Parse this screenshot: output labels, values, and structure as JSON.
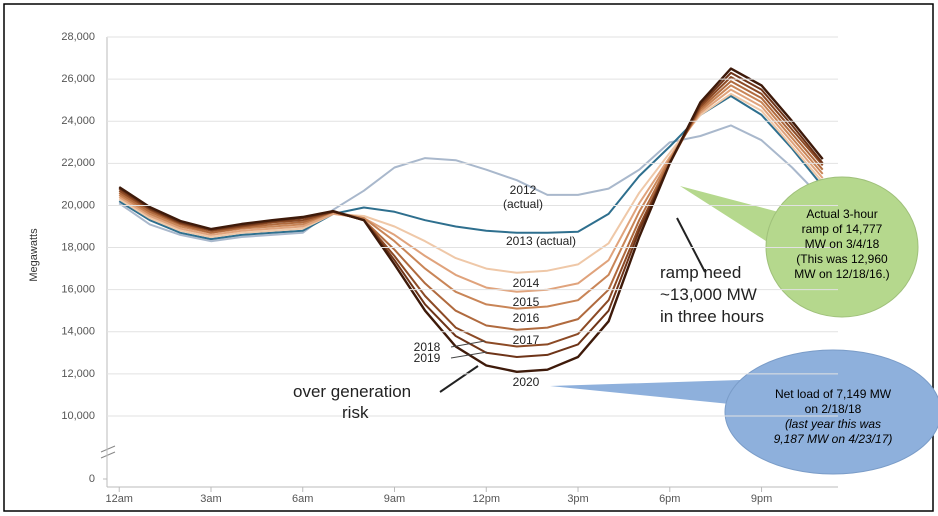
{
  "chart_data": {
    "type": "line",
    "y_label": "Megawatts",
    "x": [
      0,
      1,
      2,
      3,
      4,
      5,
      6,
      7,
      8,
      9,
      10,
      11,
      12,
      13,
      14,
      15,
      16,
      17,
      18,
      19,
      20,
      21,
      22,
      23
    ],
    "xlim": [
      -0.4,
      23.5
    ],
    "xticks": [
      {
        "value": 0,
        "label": "12am"
      },
      {
        "value": 3,
        "label": "3am"
      },
      {
        "value": 6,
        "label": "6am"
      },
      {
        "value": 9,
        "label": "9am"
      },
      {
        "value": 12,
        "label": "12pm"
      },
      {
        "value": 15,
        "label": "3pm"
      },
      {
        "value": 18,
        "label": "6pm"
      },
      {
        "value": 21,
        "label": "9pm"
      }
    ],
    "ylim": [
      0,
      28000
    ],
    "yticks": [
      0,
      {
        "value": 10000,
        "label": "10,000"
      },
      {
        "value": 12000,
        "label": "12,000"
      },
      {
        "value": 14000,
        "label": "14,000"
      },
      {
        "value": 16000,
        "label": "16,000"
      },
      {
        "value": 18000,
        "label": "18,000"
      },
      {
        "value": 20000,
        "label": "20,000"
      },
      {
        "value": 22000,
        "label": "22,000"
      },
      {
        "value": 24000,
        "label": "24,000"
      },
      {
        "value": 26000,
        "label": "26,000"
      },
      {
        "value": 28000,
        "label": "28,000"
      }
    ],
    "axis_break": true,
    "grid": true,
    "series": [
      {
        "name": "2012 (actual)",
        "color": "#a9b8cc",
        "values": [
          20100,
          19100,
          18600,
          18300,
          18500,
          18600,
          18700,
          19800,
          20700,
          21800,
          22250,
          22150,
          21700,
          21200,
          20500,
          20500,
          20800,
          21700,
          23000,
          23300,
          23800,
          23100,
          21800,
          20300
        ]
      },
      {
        "name": "2013 (actual)",
        "color": "#2e6f8e",
        "values": [
          20200,
          19300,
          18700,
          18400,
          18600,
          18700,
          18800,
          19600,
          19900,
          19700,
          19300,
          19000,
          18800,
          18700,
          18700,
          18750,
          19600,
          21400,
          22800,
          24300,
          25200,
          24300,
          22700,
          20900
        ]
      },
      {
        "name": "2014",
        "color": "#efc8a8",
        "values": [
          20300,
          19400,
          18800,
          18500,
          18700,
          18800,
          18900,
          19600,
          19500,
          19000,
          18300,
          17500,
          17000,
          16800,
          16900,
          17200,
          18200,
          20600,
          22500,
          24300,
          25300,
          24500,
          22800,
          21100
        ]
      },
      {
        "name": "2015",
        "color": "#e0a37c",
        "values": [
          20400,
          19500,
          18900,
          18600,
          18800,
          18900,
          19000,
          19600,
          19400,
          18600,
          17600,
          16700,
          16100,
          15900,
          16000,
          16300,
          17400,
          20100,
          22300,
          24400,
          25500,
          24700,
          23000,
          21300
        ]
      },
      {
        "name": "2016",
        "color": "#c98557",
        "values": [
          20500,
          19600,
          19000,
          18700,
          18900,
          19000,
          19100,
          19700,
          19400,
          18300,
          17000,
          15900,
          15300,
          15100,
          15200,
          15500,
          16700,
          19700,
          22200,
          24500,
          25700,
          24900,
          23200,
          21500
        ]
      },
      {
        "name": "2017",
        "color": "#b06a3e",
        "values": [
          20600,
          19700,
          19100,
          18700,
          18950,
          19100,
          19200,
          19700,
          19300,
          17900,
          16300,
          15000,
          14300,
          14100,
          14200,
          14600,
          16000,
          19300,
          22100,
          24600,
          25900,
          25100,
          23400,
          21700
        ]
      },
      {
        "name": "2018",
        "color": "#8c4a25",
        "values": [
          20700,
          19800,
          19150,
          18800,
          19000,
          19200,
          19300,
          19700,
          19300,
          17600,
          15700,
          14200,
          13500,
          13300,
          13400,
          13900,
          15500,
          19000,
          22000,
          24700,
          26100,
          25300,
          23600,
          21900
        ]
      },
      {
        "name": "2019",
        "color": "#6e3418",
        "values": [
          20800,
          19850,
          19200,
          18850,
          19050,
          19250,
          19400,
          19700,
          19300,
          17400,
          15300,
          13800,
          13000,
          12800,
          12900,
          13400,
          15000,
          18800,
          22000,
          24800,
          26300,
          25500,
          23800,
          22000
        ]
      },
      {
        "name": "2020",
        "color": "#3e1a0a",
        "values": [
          20870,
          19920,
          19260,
          18880,
          19120,
          19300,
          19450,
          19730,
          19300,
          17200,
          15000,
          13300,
          12400,
          12100,
          12200,
          12800,
          14500,
          18500,
          22000,
          24900,
          26500,
          25700,
          24000,
          22200
        ]
      }
    ],
    "annotations": [
      "over generation",
      "risk",
      "ramp need",
      "~13,000 MW",
      "in three hours"
    ],
    "callouts": [
      {
        "color": "#b5d88d",
        "lines": [
          "Actual 3-hour",
          "ramp of 14,777",
          "MW on 3/4/18",
          "(This was 12,960",
          "MW on 12/18/16.)"
        ]
      },
      {
        "color": "#8eb0dc",
        "lines": [
          "Net load of 7,149 MW",
          "on 2/18/18",
          "(last year this was",
          "9,187 MW on 4/23/17)"
        ]
      }
    ]
  }
}
